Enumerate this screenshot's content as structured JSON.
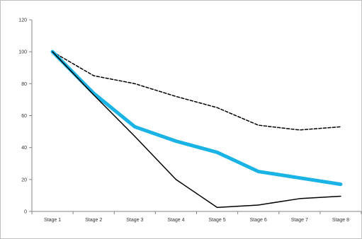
{
  "chart_data": {
    "type": "line",
    "categories": [
      "Stage 1",
      "Stage 2",
      "Stage 3",
      "Stage 4",
      "Stage 5",
      "Stage 6",
      "Stage 7",
      "Stage 8"
    ],
    "ylim": [
      0,
      120
    ],
    "yticks": [
      0,
      20,
      40,
      60,
      80,
      100,
      120
    ],
    "ytick_labels": [
      "0",
      "20",
      "40",
      "60",
      "80",
      "100",
      "120"
    ],
    "grid": false,
    "legend": "none",
    "series": [
      {
        "values": [
          100,
          85,
          80,
          72,
          65,
          54,
          51,
          53
        ],
        "color": "#000000",
        "style": "dashed"
      },
      {
        "values": [
          100,
          74,
          53,
          44,
          37,
          25,
          21,
          17
        ],
        "color": "#1ab3e6",
        "style": "thick"
      },
      {
        "values": [
          100,
          73,
          47,
          20,
          2.5,
          4,
          8,
          9.5
        ],
        "color": "#000000",
        "style": "solid"
      }
    ]
  }
}
